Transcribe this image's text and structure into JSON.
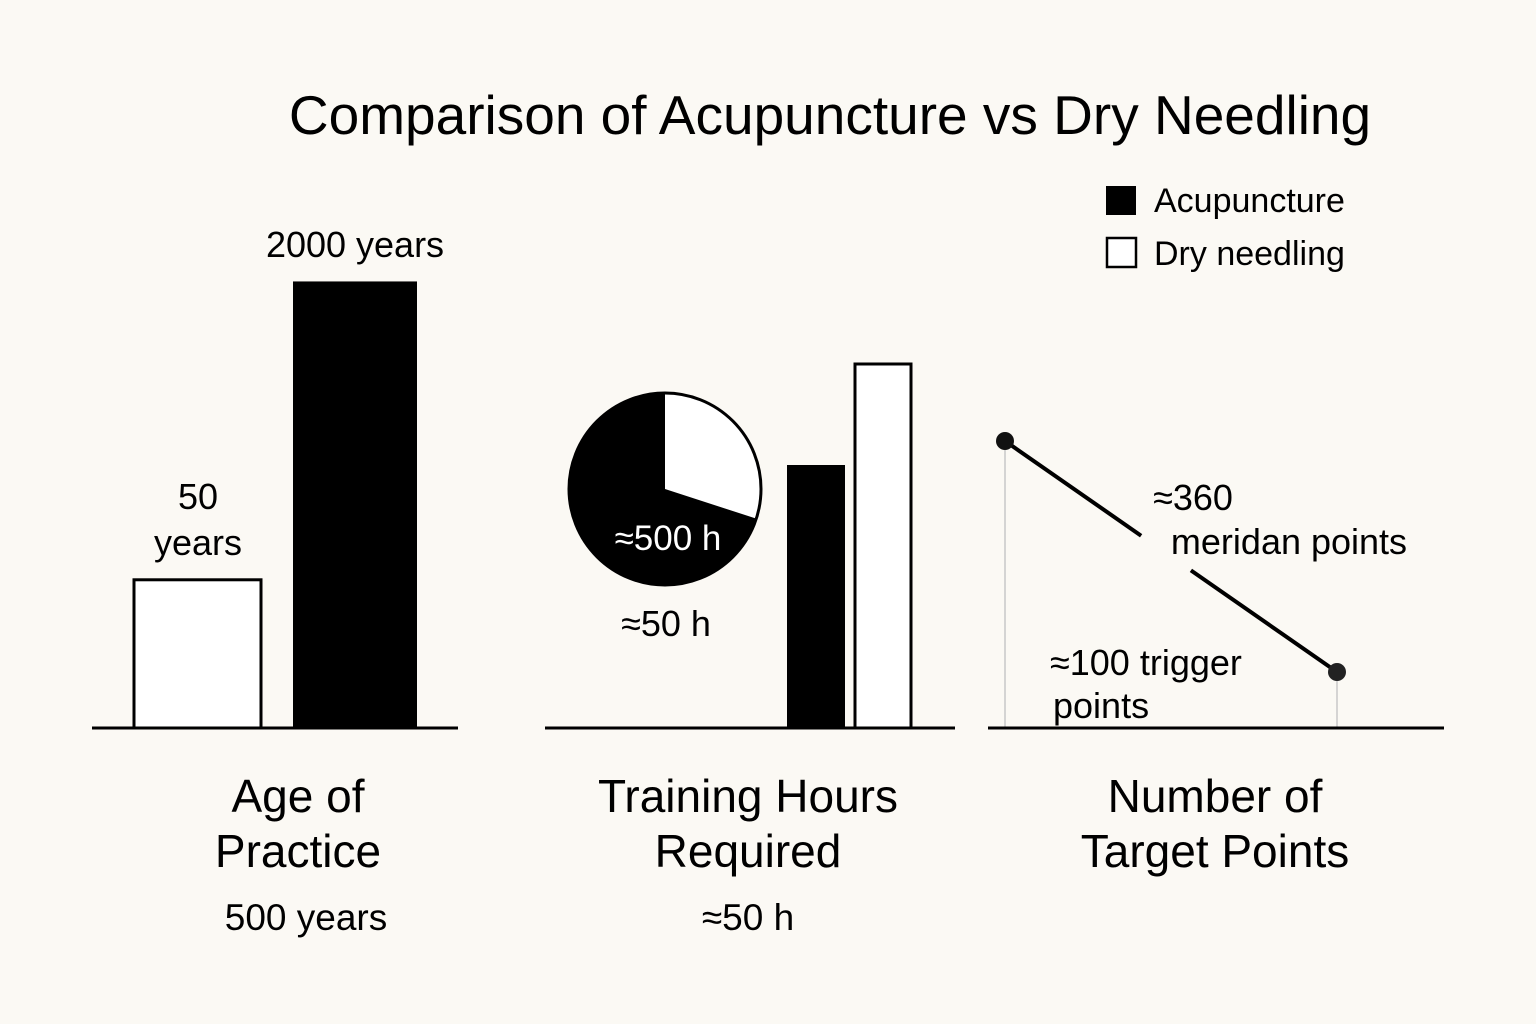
{
  "chart_data": [
    {
      "type": "bar",
      "title": "Age of Practice",
      "title_lines": [
        "Age of",
        "Practice"
      ],
      "subtitle": "500 years",
      "scale": "log",
      "ylim": [
        8,
        3100
      ],
      "series": [
        {
          "name": "Dry needling",
          "value": 50,
          "unit": "years",
          "label_lines": [
            "50",
            "years"
          ]
        },
        {
          "name": "Acupuncture",
          "value": 2000,
          "unit": "years",
          "label": "2000 years"
        }
      ]
    },
    {
      "type": "bar",
      "title": "Training Hours Required",
      "title_lines": [
        "Training Hours",
        "Required"
      ],
      "subtitle": "≈50 h",
      "pie": {
        "slices": [
          {
            "name": "Acupuncture",
            "fraction": 0.7,
            "label": "≈500 h"
          },
          {
            "name": "Dry needling",
            "fraction": 0.3
          }
        ]
      },
      "pie_caption": "≈50 h",
      "series": [
        {
          "name": "Acupuncture",
          "value": 500,
          "unit": "h"
        },
        {
          "name": "Dry needling",
          "value": 50,
          "unit": "h"
        }
      ]
    },
    {
      "type": "line",
      "title": "Number of Target Points",
      "title_lines": [
        "Number of",
        "Target Points"
      ],
      "ylim": [
        0,
        400
      ],
      "points": [
        {
          "name": "Acupuncture",
          "value": 360,
          "label_lines": [
            "≈360",
            "meridan points"
          ]
        },
        {
          "name": "Dry needling",
          "value": 100,
          "label_lines": [
            "≈100 trigger",
            "points"
          ]
        }
      ]
    }
  ],
  "title": "Comparison of Acupuncture vs Dry Needling",
  "legend": [
    {
      "label": "Acupuncture",
      "color": "#000000"
    },
    {
      "label": "Dry needling",
      "color": "#ffffff"
    }
  ],
  "colors": {
    "background": "#fbf9f4",
    "ink": "#000000",
    "guide": "#c8c8c8"
  }
}
